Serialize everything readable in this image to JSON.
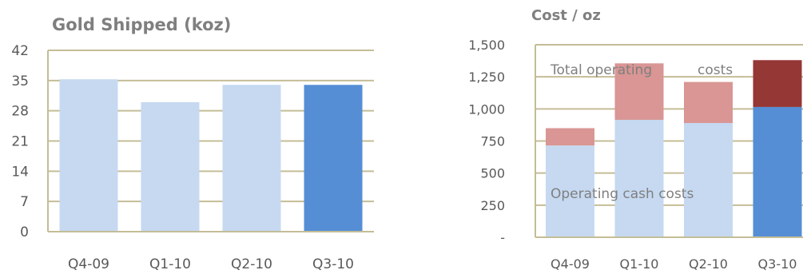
{
  "chart_data": [
    {
      "type": "bar",
      "title": "Gold Shipped (koz)",
      "categories": [
        "Q4-09",
        "Q1-10",
        "Q2-10",
        "Q3-10"
      ],
      "values": [
        35.3,
        30.0,
        34.0,
        34.0
      ],
      "ylim": [
        0,
        42
      ],
      "yticks": [
        "0",
        "7",
        "14",
        "21",
        "28",
        "35",
        "42"
      ],
      "grid": true,
      "colors": {
        "bar": "#c6d9f1",
        "highlight": "#558ed5",
        "grid": "#c4bd97",
        "axis": "#c4bd97"
      }
    },
    {
      "type": "bar",
      "stacked": true,
      "title": "Cost / oz",
      "categories": [
        "Q4-09",
        "Q1-10",
        "Q2-10",
        "Q3-10"
      ],
      "series": [
        {
          "name": "Operating cash costs",
          "values": [
            715,
            915,
            890,
            1015
          ]
        },
        {
          "name": "Total operating costs",
          "values": [
            135,
            440,
            320,
            365
          ]
        }
      ],
      "totals": [
        850,
        1355,
        1210,
        1380
      ],
      "ylim": [
        0,
        1500
      ],
      "yticks": [
        "-",
        "250",
        "500",
        "750",
        "1,000",
        "1,250",
        "1,500"
      ],
      "annotations": [
        "Total operating",
        "costs",
        "Operating cash costs"
      ],
      "grid": true,
      "colors": {
        "base": "#c6d9f1",
        "base_highlight": "#558ed5",
        "top": "#d99694",
        "top_highlight": "#953735",
        "grid": "#c4bd97",
        "axis": "#c4bd97"
      }
    }
  ]
}
